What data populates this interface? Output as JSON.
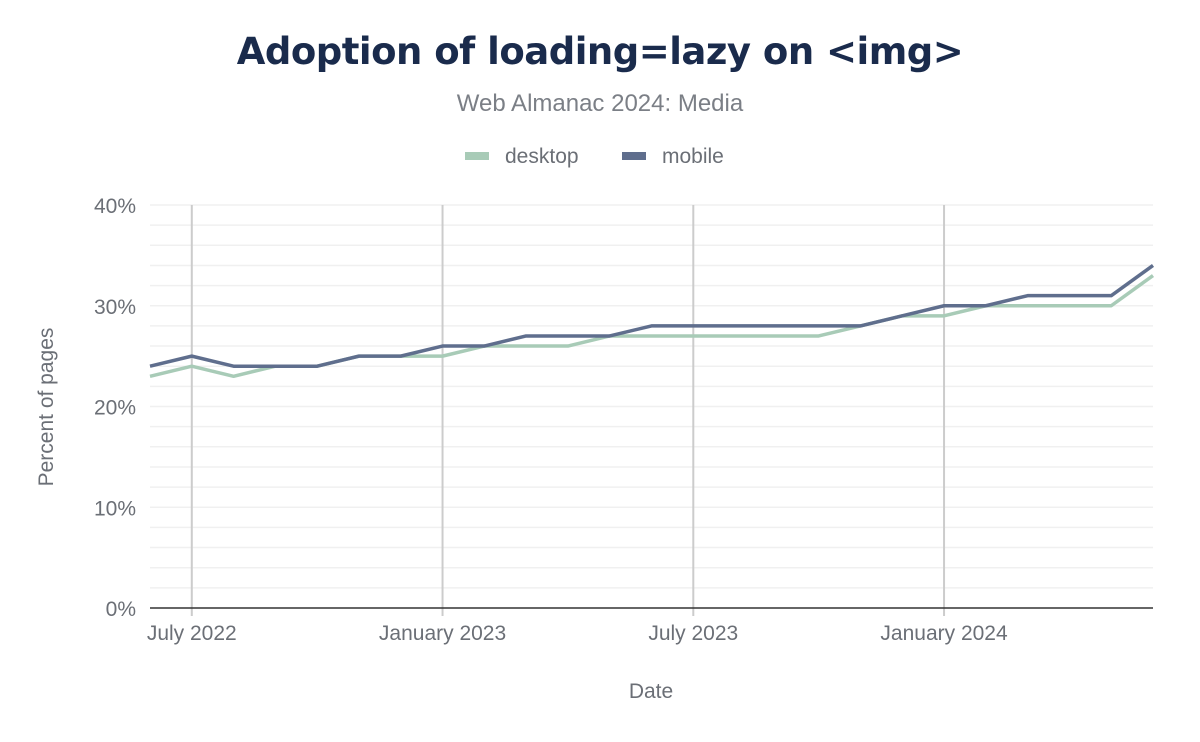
{
  "title": "Adoption of loading=lazy on <img>",
  "subtitle": "Web Almanac 2024: Media",
  "chart_data": {
    "type": "line",
    "xlabel": "Date",
    "ylabel": "Percent of pages",
    "x": [
      "2022-06",
      "2022-07",
      "2022-08",
      "2022-09",
      "2022-10",
      "2022-11",
      "2022-12",
      "2023-01",
      "2023-02",
      "2023-03",
      "2023-04",
      "2023-05",
      "2023-06",
      "2023-07",
      "2023-08",
      "2023-09",
      "2023-10",
      "2023-11",
      "2023-12",
      "2024-01",
      "2024-02",
      "2024-03",
      "2024-04",
      "2024-05",
      "2024-06"
    ],
    "x_ticks": [
      {
        "date": "2022-07",
        "label": "July 2022"
      },
      {
        "date": "2023-01",
        "label": "January 2023"
      },
      {
        "date": "2023-07",
        "label": "July 2023"
      },
      {
        "date": "2024-01",
        "label": "January 2024"
      }
    ],
    "y_ticks": [
      {
        "value": 0,
        "label": "0%"
      },
      {
        "value": 10,
        "label": "10%"
      },
      {
        "value": 20,
        "label": "20%"
      },
      {
        "value": 30,
        "label": "30%"
      },
      {
        "value": 40,
        "label": "40%"
      }
    ],
    "ylim": [
      0,
      40
    ],
    "grid": true,
    "legend_position": "top",
    "series": [
      {
        "name": "desktop",
        "color": "#a8cbb7",
        "values": [
          23,
          24,
          23,
          24,
          24,
          25,
          25,
          25,
          26,
          26,
          26,
          27,
          27,
          27,
          27,
          27,
          27,
          28,
          29,
          29,
          30,
          30,
          30,
          30,
          33
        ]
      },
      {
        "name": "mobile",
        "color": "#5f6e8d",
        "values": [
          24,
          25,
          24,
          24,
          24,
          25,
          25,
          26,
          26,
          27,
          27,
          27,
          28,
          28,
          28,
          28,
          28,
          28,
          29,
          30,
          30,
          31,
          31,
          31,
          34
        ]
      }
    ]
  }
}
